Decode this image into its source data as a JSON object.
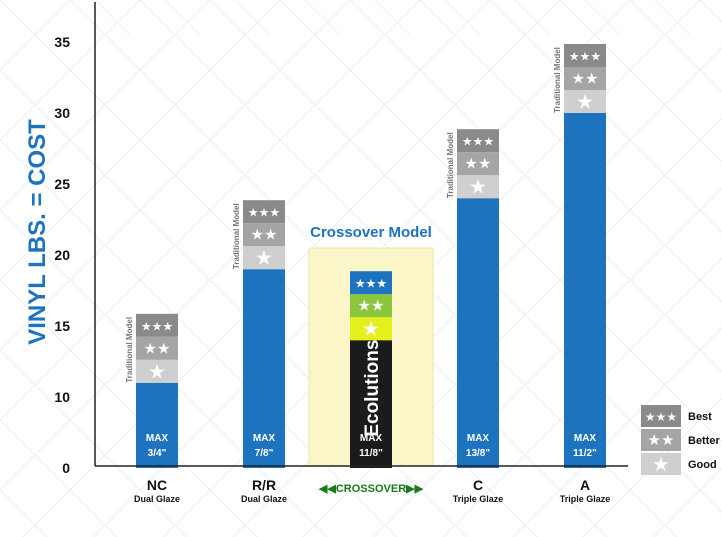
{
  "chart_data": {
    "type": "bar",
    "ylabel": "VINYL LBS. = COST",
    "ylim": [
      0,
      35
    ],
    "yticks": [
      0,
      10,
      15,
      20,
      25,
      30,
      35
    ],
    "grid": false,
    "legend_position": "bottom-right",
    "categories": [
      {
        "label": "NC",
        "sub": "Dual Glaze",
        "max_label": "MAX",
        "max_value": "3/4\"",
        "base": 11,
        "total": 17,
        "model_label": "Traditional Model",
        "highlight": false
      },
      {
        "label": "R/R",
        "sub": "Dual Glaze",
        "max_label": "MAX",
        "max_value": "7/8\"",
        "base": 19,
        "total": 25,
        "model_label": "Traditional Model",
        "highlight": false
      },
      {
        "label": "CROSSOVER",
        "sub": "",
        "max_label": "MAX",
        "max_value": "11/8\"",
        "base": 14,
        "total": 20,
        "model_label": "Crossover Model",
        "brand": "Ecolutions",
        "highlight": true
      },
      {
        "label": "C",
        "sub": "Triple Glaze",
        "max_label": "MAX",
        "max_value": "13/8\"",
        "base": 24,
        "total": 30,
        "model_label": "Traditional Model",
        "highlight": false
      },
      {
        "label": "A",
        "sub": "Triple Glaze",
        "max_label": "MAX",
        "max_value": "11/2\"",
        "base": 30,
        "total": 36,
        "model_label": "Traditional Model",
        "highlight": false
      }
    ],
    "legend": [
      {
        "stars": "★★★",
        "label": "Best"
      },
      {
        "stars": "★★",
        "label": "Better"
      },
      {
        "stars": "★",
        "label": "Good"
      }
    ],
    "colors": {
      "bar": "#1e73be",
      "tier_best": "#8a8a8a",
      "tier_better": "#a5a5a5",
      "tier_good": "#cfcfcf",
      "cross_best": "#1e73be",
      "cross_better": "#8cc63f",
      "cross_good": "#e4ef1c",
      "cross_base": "#1b1b1b",
      "highlight_bg": "#fbf6c8"
    }
  }
}
